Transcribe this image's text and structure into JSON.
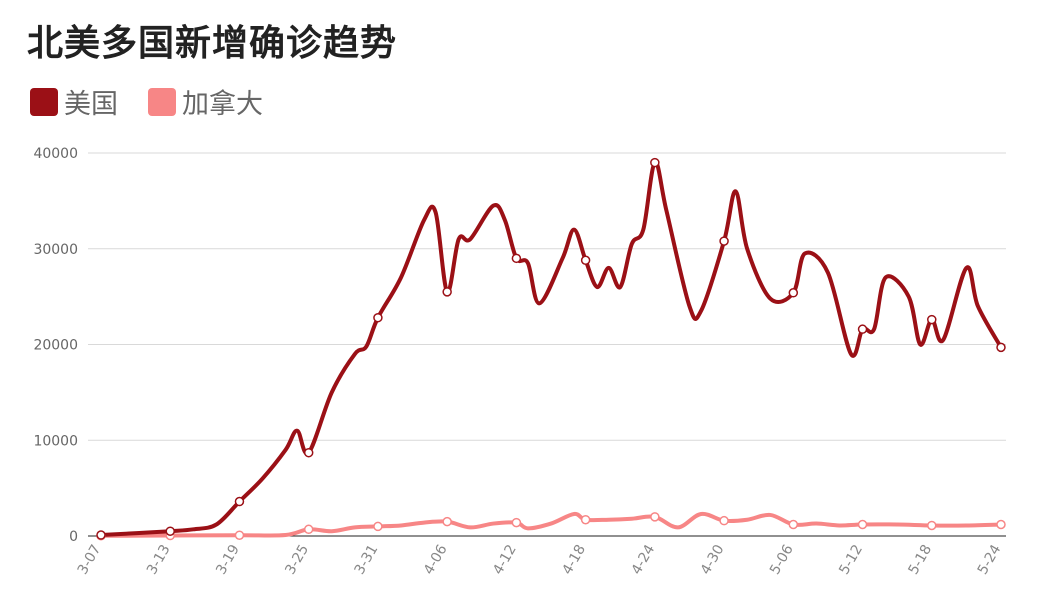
{
  "chart_data": {
    "type": "line",
    "title": "北美多国新增确诊趋势",
    "legend_position": "top-left",
    "categories": [
      "3-07",
      "3-13",
      "3-19",
      "3-25",
      "3-31",
      "4-06",
      "4-12",
      "4-18",
      "4-24",
      "4-30",
      "5-06",
      "5-12",
      "5-18",
      "5-24"
    ],
    "y_ticks": [
      "0",
      "10000",
      "20000",
      "30000",
      "40000"
    ],
    "ylim": [
      0,
      40000
    ],
    "grid": true,
    "series": [
      {
        "name": "美国",
        "color": "#9b1016",
        "x": [
          "3-07",
          "3-13",
          "3-15",
          "3-17",
          "3-19",
          "3-21",
          "3-23",
          "3-24",
          "3-25",
          "3-27",
          "3-29",
          "3-30",
          "3-31",
          "4-02",
          "4-04",
          "4-05",
          "4-06",
          "4-07",
          "4-08",
          "4-10",
          "4-11",
          "4-12",
          "4-13",
          "4-14",
          "4-16",
          "4-17",
          "4-18",
          "4-19",
          "4-20",
          "4-21",
          "4-22",
          "4-23",
          "4-24",
          "4-25",
          "4-27",
          "4-28",
          "4-30",
          "5-01",
          "5-02",
          "5-04",
          "5-06",
          "5-07",
          "5-09",
          "5-11",
          "5-12",
          "5-13",
          "5-14",
          "5-16",
          "5-17",
          "5-18",
          "5-19",
          "5-21",
          "5-22",
          "5-24"
        ],
        "values": [
          100,
          500,
          700,
          1200,
          3600,
          6000,
          9000,
          11000,
          8700,
          15000,
          19000,
          19800,
          22800,
          27000,
          33000,
          33800,
          25500,
          31000,
          31000,
          34500,
          33000,
          29000,
          28500,
          24300,
          29000,
          32000,
          28800,
          26000,
          28000,
          26000,
          30500,
          32000,
          39000,
          34000,
          24000,
          23500,
          30800,
          36000,
          30000,
          24800,
          25400,
          29500,
          27500,
          19000,
          21600,
          21600,
          27000,
          25000,
          20000,
          22600,
          20500,
          28000,
          24000,
          19700
        ]
      },
      {
        "name": "加拿大",
        "color": "#f78686",
        "x": [
          "3-07",
          "3-13",
          "3-19",
          "3-23",
          "3-25",
          "3-27",
          "3-29",
          "3-31",
          "4-02",
          "4-04",
          "4-06",
          "4-08",
          "4-10",
          "4-12",
          "4-13",
          "4-15",
          "4-17",
          "4-18",
          "4-20",
          "4-22",
          "4-24",
          "4-26",
          "4-28",
          "4-30",
          "5-02",
          "5-04",
          "5-06",
          "5-08",
          "5-10",
          "5-12",
          "5-15",
          "5-18",
          "5-21",
          "5-24"
        ],
        "values": [
          20,
          50,
          80,
          100,
          700,
          500,
          900,
          1000,
          1100,
          1400,
          1500,
          900,
          1300,
          1400,
          800,
          1300,
          2300,
          1700,
          1700,
          1800,
          2000,
          900,
          2300,
          1600,
          1700,
          2200,
          1200,
          1300,
          1100,
          1200,
          1200,
          1100,
          1100,
          1200
        ]
      }
    ],
    "marker_x": [
      "3-07",
      "3-13",
      "3-19",
      "3-25",
      "3-31",
      "4-06",
      "4-12",
      "4-18",
      "4-24",
      "4-30",
      "5-06",
      "5-12",
      "5-18",
      "5-24"
    ]
  }
}
